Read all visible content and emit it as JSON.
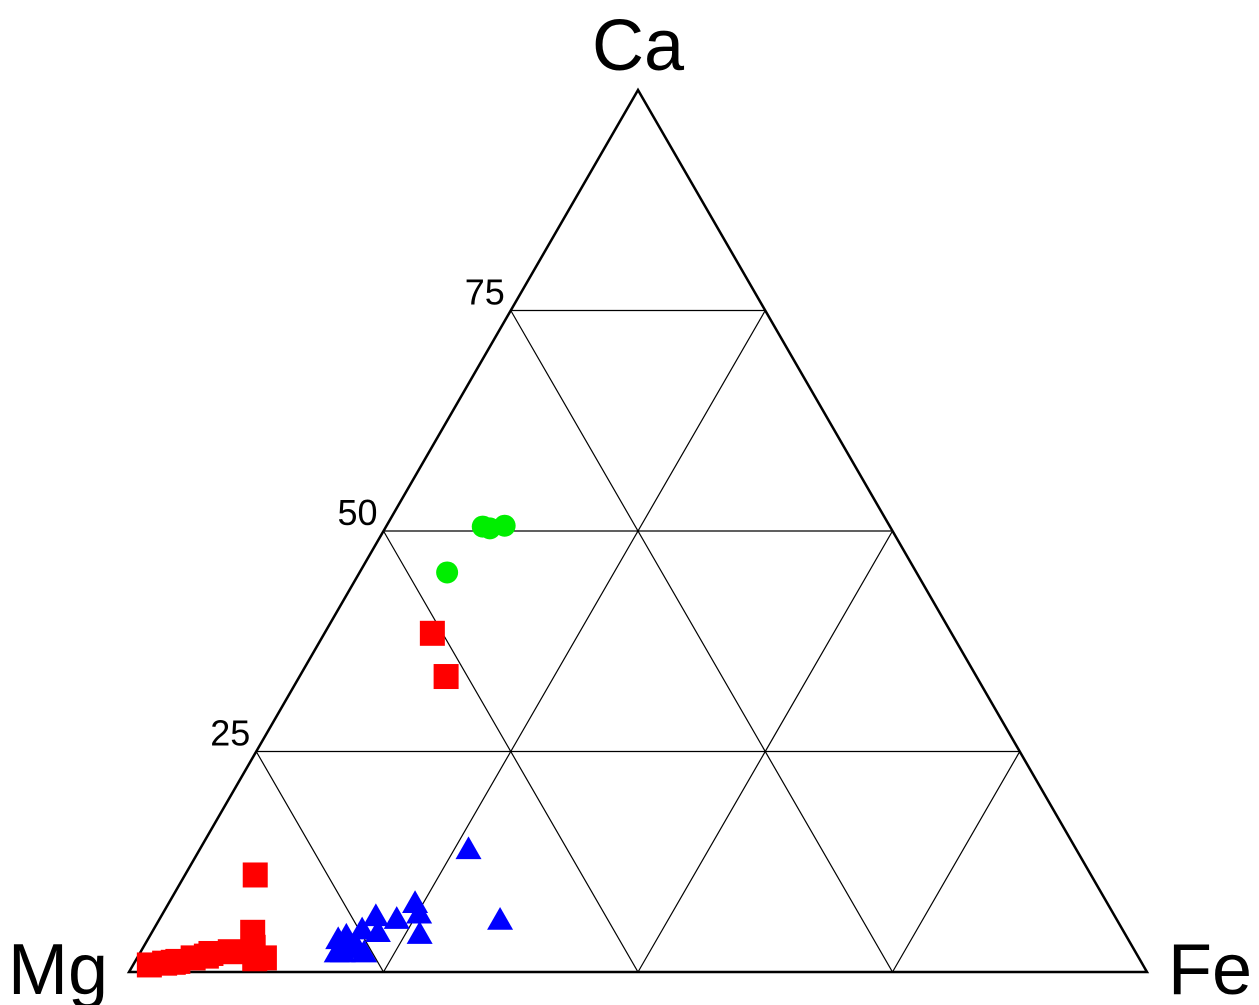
{
  "chart_data": {
    "type": "scatter",
    "subtype": "ternary",
    "vertices": {
      "top": "Ca",
      "left": "Mg",
      "right": "Fe"
    },
    "grid_levels": [
      25,
      50,
      75
    ],
    "tick_labels": [
      "25",
      "50",
      "75"
    ],
    "grid": true,
    "series": [
      {
        "marker": "circle",
        "color": "#00ee00",
        "points": [
          {
            "Ca": 50.5,
            "Mg": 40.0,
            "Fe": 9.5
          },
          {
            "Ca": 50.3,
            "Mg": 39.4,
            "Fe": 10.3
          },
          {
            "Ca": 50.6,
            "Mg": 37.8,
            "Fe": 11.6
          },
          {
            "Ca": 45.3,
            "Mg": 46.1,
            "Fe": 8.6
          }
        ]
      },
      {
        "marker": "square",
        "color": "#ff0000",
        "points": [
          {
            "Ca": 38.4,
            "Mg": 51.0,
            "Fe": 10.6
          },
          {
            "Ca": 33.5,
            "Mg": 52.1,
            "Fe": 14.4
          },
          {
            "Ca": 11.0,
            "Mg": 82.1,
            "Fe": 6.9
          },
          {
            "Ca": 4.5,
            "Mg": 85.6,
            "Fe": 9.9
          },
          {
            "Ca": 2.8,
            "Mg": 86.4,
            "Fe": 10.8
          },
          {
            "Ca": 2.3,
            "Mg": 88.9,
            "Fe": 8.8
          },
          {
            "Ca": 2.1,
            "Mg": 90.9,
            "Fe": 7.0
          },
          {
            "Ca": 1.6,
            "Mg": 92.9,
            "Fe": 5.5
          },
          {
            "Ca": 1.2,
            "Mg": 94.6,
            "Fe": 4.2
          },
          {
            "Ca": 1.0,
            "Mg": 96.0,
            "Fe": 3.0
          },
          {
            "Ca": 0.8,
            "Mg": 97.6,
            "Fe": 1.6
          },
          {
            "Ca": 1.1,
            "Mg": 95.1,
            "Fe": 3.8
          },
          {
            "Ca": 1.8,
            "Mg": 91.5,
            "Fe": 6.7
          },
          {
            "Ca": 1.6,
            "Mg": 85.9,
            "Fe": 12.5
          },
          {
            "Ca": 1.5,
            "Mg": 86.9,
            "Fe": 11.6
          }
        ]
      },
      {
        "marker": "triangle",
        "color": "#0000ff",
        "points": [
          {
            "Ca": 13.9,
            "Mg": 59.7,
            "Fe": 26.4
          },
          {
            "Ca": 5.9,
            "Mg": 60.6,
            "Fe": 33.5
          },
          {
            "Ca": 7.8,
            "Mg": 68.0,
            "Fe": 24.2
          },
          {
            "Ca": 6.6,
            "Mg": 68.2,
            "Fe": 25.2
          },
          {
            "Ca": 6.0,
            "Mg": 70.7,
            "Fe": 23.3
          },
          {
            "Ca": 6.3,
            "Mg": 72.6,
            "Fe": 21.1
          },
          {
            "Ca": 4.8,
            "Mg": 74.7,
            "Fe": 20.5
          },
          {
            "Ca": 4.3,
            "Mg": 69.3,
            "Fe": 26.4
          },
          {
            "Ca": 4.1,
            "Mg": 76.6,
            "Fe": 19.3
          },
          {
            "Ca": 3.7,
            "Mg": 77.6,
            "Fe": 18.7
          },
          {
            "Ca": 3.0,
            "Mg": 76.8,
            "Fe": 20.2
          },
          {
            "Ca": 2.7,
            "Mg": 77.6,
            "Fe": 19.7
          },
          {
            "Ca": 2.7,
            "Mg": 76.2,
            "Fe": 21.1
          },
          {
            "Ca": 2.2,
            "Mg": 75.8,
            "Fe": 22.0
          },
          {
            "Ca": 2.2,
            "Mg": 77.9,
            "Fe": 19.9
          },
          {
            "Ca": 2.2,
            "Mg": 78.5,
            "Fe": 19.3
          },
          {
            "Ca": 4.5,
            "Mg": 73.3,
            "Fe": 22.2
          }
        ]
      }
    ]
  }
}
